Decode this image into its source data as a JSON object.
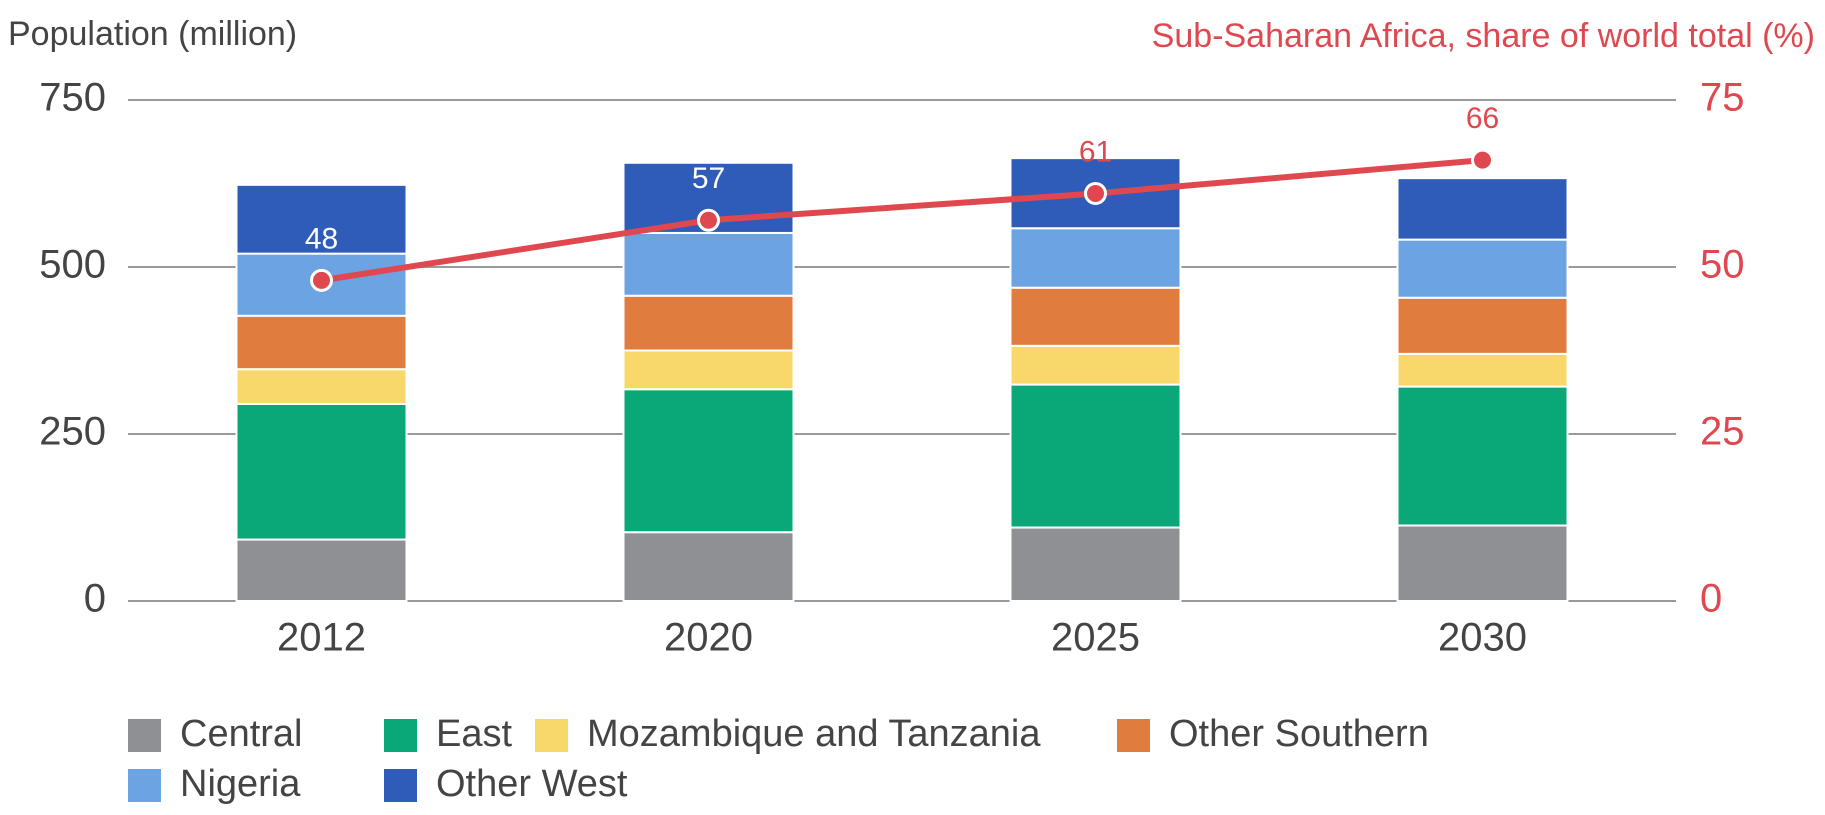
{
  "chart_data": {
    "type": "bar",
    "stacked": true,
    "ylabel": "Population (million)",
    "y2label": "Sub-Saharan Africa, share of world total (%)",
    "categories": [
      "2012",
      "2020",
      "2025",
      "2030"
    ],
    "series": [
      {
        "name": "Central",
        "color": "#8f9094",
        "values": [
          92,
          103,
          110,
          113
        ]
      },
      {
        "name": "East",
        "color": "#0aa878",
        "values": [
          203,
          214,
          214,
          208
        ]
      },
      {
        "name": "Mozambique and Tanzania",
        "color": "#f8d86a",
        "values": [
          52,
          58,
          58,
          49
        ]
      },
      {
        "name": "Other Southern",
        "color": "#e07c3e",
        "values": [
          80,
          82,
          87,
          84
        ]
      },
      {
        "name": "Nigeria",
        "color": "#6ca3e2",
        "values": [
          93,
          94,
          89,
          87
        ]
      },
      {
        "name": "Other West",
        "color": "#2f5cb8",
        "values": [
          103,
          105,
          105,
          92
        ]
      },
      {
        "name": "Share of world total",
        "type": "line",
        "axis": "y2",
        "color": "#e04850",
        "values": [
          48,
          57,
          61,
          66
        ]
      }
    ],
    "ylim": [
      0,
      750
    ],
    "yticks": [
      0,
      250,
      500,
      750
    ],
    "y2lim": [
      0,
      75
    ],
    "y2ticks": [
      0,
      25,
      50,
      75
    ],
    "grid": true
  }
}
